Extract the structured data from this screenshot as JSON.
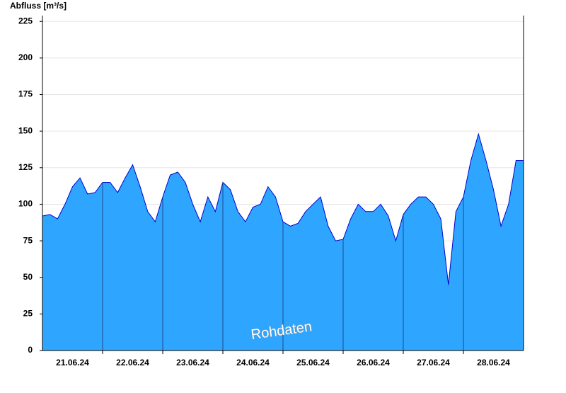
{
  "chart_data": {
    "type": "area",
    "ylabel": "Abfluss [m³/s]",
    "watermark": "Rohdaten",
    "x": [
      0,
      0.125,
      0.25,
      0.375,
      0.5,
      0.625,
      0.75,
      0.875,
      1,
      1.125,
      1.25,
      1.375,
      1.5,
      1.625,
      1.75,
      1.875,
      2,
      2.125,
      2.25,
      2.375,
      2.5,
      2.625,
      2.75,
      2.875,
      3,
      3.125,
      3.25,
      3.375,
      3.5,
      3.625,
      3.75,
      3.875,
      4,
      4.125,
      4.25,
      4.375,
      4.5,
      4.625,
      4.75,
      4.875,
      5,
      5.125,
      5.25,
      5.375,
      5.5,
      5.625,
      5.75,
      5.875,
      6,
      6.125,
      6.25,
      6.375,
      6.5,
      6.625,
      6.75,
      6.875,
      7,
      7.125,
      7.25,
      7.375,
      7.5,
      7.625,
      7.75,
      7.875,
      8
    ],
    "values": [
      92,
      93,
      90,
      100,
      112,
      118,
      107,
      108,
      115,
      115,
      108,
      118,
      127,
      112,
      95,
      88,
      105,
      120,
      122,
      115,
      100,
      88,
      105,
      95,
      115,
      110,
      95,
      88,
      98,
      100,
      112,
      105,
      88,
      85,
      87,
      95,
      100,
      105,
      85,
      75,
      76,
      90,
      100,
      95,
      95,
      100,
      92,
      75,
      93,
      100,
      105,
      105,
      100,
      90,
      45,
      95,
      105,
      130,
      148,
      130,
      110,
      85,
      100,
      130,
      130
    ],
    "color": "#2ea6ff",
    "line_color": "#0000d0",
    "xlim": [
      0,
      8
    ],
    "xticks": [
      {
        "value": 0.5,
        "label": "21.06.24"
      },
      {
        "value": 1.5,
        "label": "22.06.24"
      },
      {
        "value": 2.5,
        "label": "23.06.24"
      },
      {
        "value": 3.5,
        "label": "24.06.24"
      },
      {
        "value": 4.5,
        "label": "25.06.24"
      },
      {
        "value": 5.5,
        "label": "26.06.24"
      },
      {
        "value": 6.5,
        "label": "27.06.24"
      },
      {
        "value": 7.5,
        "label": "28.06.24"
      }
    ],
    "xgrid": [
      1,
      2,
      3,
      4,
      5,
      6,
      7
    ],
    "ylim": [
      0,
      229
    ],
    "yticks": [
      0,
      25,
      50,
      75,
      100,
      125,
      150,
      175,
      200,
      225
    ],
    "grid": true
  }
}
